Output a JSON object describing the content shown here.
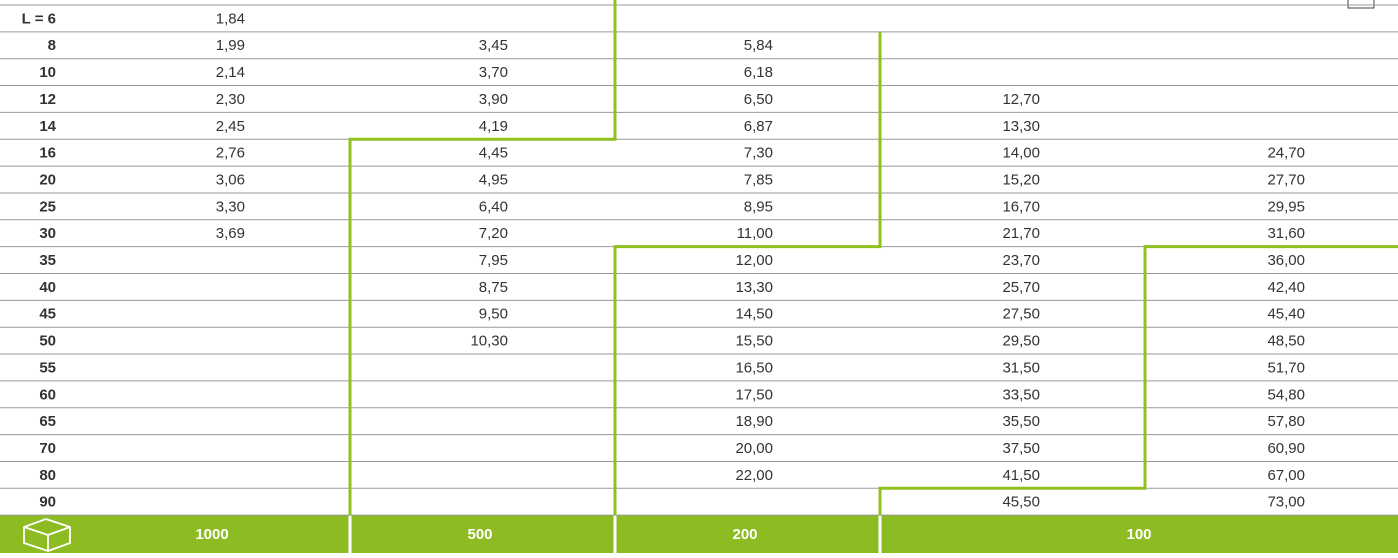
{
  "table": {
    "rows": [
      [
        "L = 6",
        "1,84",
        null,
        null,
        null,
        null
      ],
      [
        "8",
        "1,99",
        "3,45",
        "5,84",
        null,
        null
      ],
      [
        "10",
        "2,14",
        "3,70",
        "6,18",
        null,
        null
      ],
      [
        "12",
        "2,30",
        "3,90",
        "6,50",
        "12,70",
        null
      ],
      [
        "14",
        "2,45",
        "4,19",
        "6,87",
        "13,30",
        null
      ],
      [
        "16",
        "2,76",
        "4,45",
        "7,30",
        "14,00",
        "24,70"
      ],
      [
        "20",
        "3,06",
        "4,95",
        "7,85",
        "15,20",
        "27,70"
      ],
      [
        "25",
        "3,30",
        "6,40",
        "8,95",
        "16,70",
        "29,95"
      ],
      [
        "30",
        "3,69",
        "7,20",
        "11,00",
        "21,70",
        "31,60"
      ],
      [
        "35",
        null,
        "7,95",
        "12,00",
        "23,70",
        "36,00"
      ],
      [
        "40",
        null,
        "8,75",
        "13,30",
        "25,70",
        "42,40"
      ],
      [
        "45",
        null,
        "9,50",
        "14,50",
        "27,50",
        "45,40"
      ],
      [
        "50",
        null,
        "10,30",
        "15,50",
        "29,50",
        "48,50"
      ],
      [
        "55",
        null,
        null,
        "16,50",
        "31,50",
        "51,70"
      ],
      [
        "60",
        null,
        null,
        "17,50",
        "33,50",
        "54,80"
      ],
      [
        "65",
        null,
        null,
        "18,90",
        "35,50",
        "57,80"
      ],
      [
        "70",
        null,
        null,
        "20,00",
        "37,50",
        "60,90"
      ],
      [
        "80",
        null,
        null,
        "22,00",
        "41,50",
        "67,00"
      ],
      [
        "90",
        null,
        null,
        null,
        "45,50",
        "73,00"
      ]
    ],
    "footer": [
      "1000",
      "500",
      "200",
      "100"
    ]
  }
}
